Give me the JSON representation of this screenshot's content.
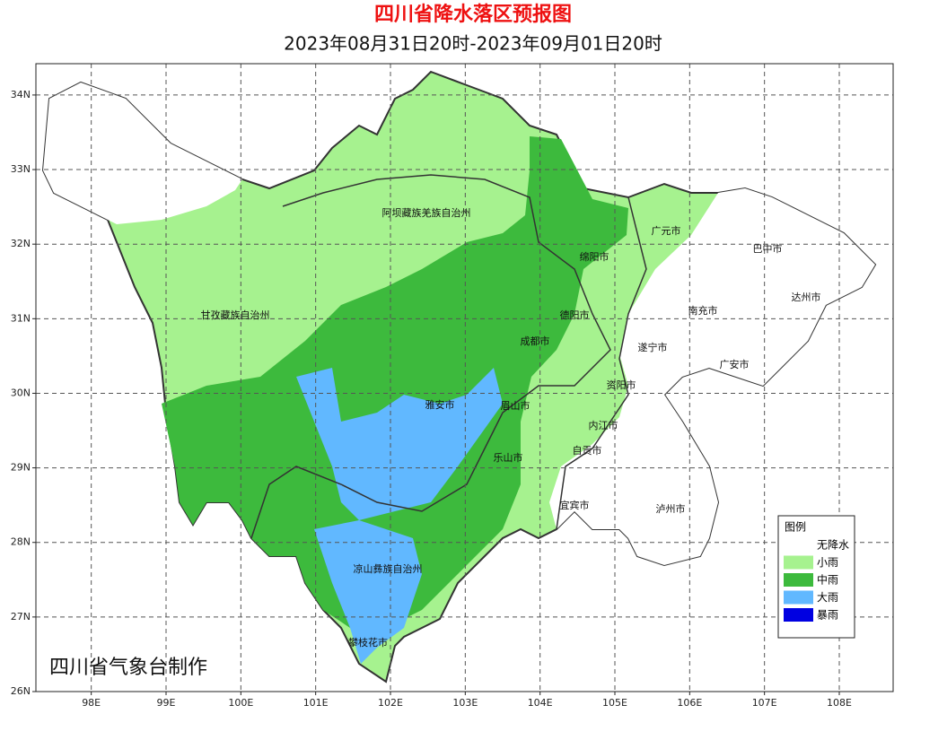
{
  "map": {
    "title": "四川省降水落区预报图",
    "subtitle": "2023年08月31日20时-2023年09月01日20时",
    "xlim": [
      97.26,
      108.72
    ],
    "ylim": [
      26,
      34.42
    ],
    "xticks": [
      {
        "value": 98,
        "label": "98E"
      },
      {
        "value": 99,
        "label": "99E"
      },
      {
        "value": 100,
        "label": "100E"
      },
      {
        "value": 101,
        "label": "101E"
      },
      {
        "value": 102,
        "label": "102E"
      },
      {
        "value": 103,
        "label": "103E"
      },
      {
        "value": 104,
        "label": "104E"
      },
      {
        "value": 105,
        "label": "105E"
      },
      {
        "value": 106,
        "label": "106E"
      },
      {
        "value": 107,
        "label": "107E"
      },
      {
        "value": 108,
        "label": "108E"
      }
    ],
    "yticks": [
      {
        "value": 26,
        "label": "26N"
      },
      {
        "value": 27,
        "label": "27N"
      },
      {
        "value": 28,
        "label": "28N"
      },
      {
        "value": 29,
        "label": "29N"
      },
      {
        "value": 30,
        "label": "30N"
      },
      {
        "value": 31,
        "label": "31N"
      },
      {
        "value": 32,
        "label": "32N"
      },
      {
        "value": 33,
        "label": "33N"
      },
      {
        "value": 34,
        "label": "34N"
      }
    ],
    "places": [
      "阿坝藏族羌族自治州",
      "甘孜藏族自治州",
      "广元市",
      "巴中市",
      "绵阳市",
      "达州市",
      "德阳市",
      "南充市",
      "成都市",
      "遂宁市",
      "广安市",
      "资阳市",
      "雅安市",
      "眉山市",
      "内江市",
      "自贡市",
      "乐山市",
      "宜宾市",
      "泸州市",
      "凉山彝族自治州",
      "攀枝花市"
    ],
    "legend": {
      "title": "图例",
      "items": [
        {
          "name": "无降水",
          "color": "#ffffff"
        },
        {
          "name": "小雨",
          "color": "#a6f28f"
        },
        {
          "name": "中雨",
          "color": "#3dba3d"
        },
        {
          "name": "大雨",
          "color": "#61b8ff"
        },
        {
          "name": "暴雨",
          "color": "#0000e1"
        }
      ]
    },
    "credit": "四川省气象台制作"
  }
}
